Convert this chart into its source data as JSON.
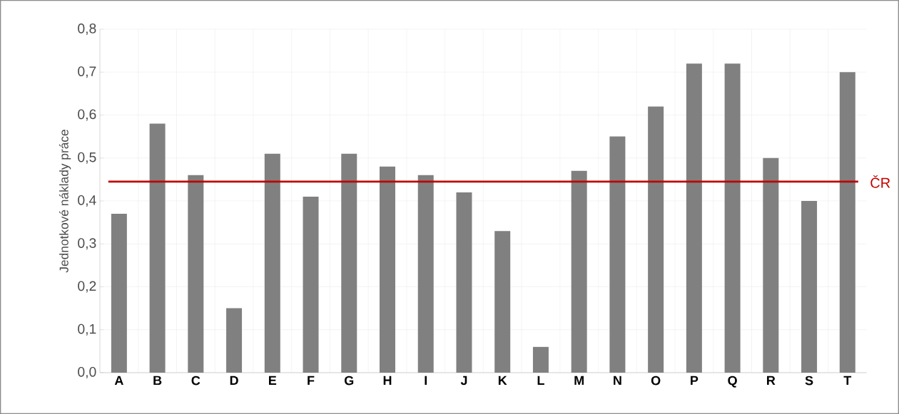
{
  "chart_data": {
    "type": "bar",
    "ylabel": "Jednotkové náklady práce",
    "categories": [
      "A",
      "B",
      "C",
      "D",
      "E",
      "F",
      "G",
      "H",
      "I",
      "J",
      "K",
      "L",
      "M",
      "N",
      "O",
      "P",
      "Q",
      "R",
      "S",
      "T"
    ],
    "values": [
      0.37,
      0.58,
      0.46,
      0.15,
      0.51,
      0.41,
      0.51,
      0.48,
      0.46,
      0.42,
      0.33,
      0.06,
      0.47,
      0.55,
      0.62,
      0.72,
      0.72,
      0.5,
      0.4,
      0.7
    ],
    "color": "#808080",
    "ylim": [
      0,
      0.8
    ],
    "yticks": [
      {
        "value": 0,
        "label": "0,0"
      },
      {
        "value": 0.1,
        "label": "0,1"
      },
      {
        "value": 0.2,
        "label": "0,2"
      },
      {
        "value": 0.3,
        "label": "0,3"
      },
      {
        "value": 0.4,
        "label": "0,4"
      },
      {
        "value": 0.5,
        "label": "0,5"
      },
      {
        "value": 0.6,
        "label": "0,6"
      },
      {
        "value": 0.7,
        "label": "0,7"
      },
      {
        "value": 0.8,
        "label": "0,8"
      }
    ],
    "ref_lines": [
      {
        "axis": "y",
        "value": 0.445,
        "label": "ČR",
        "color": "#c00000"
      }
    ],
    "grid": true
  }
}
